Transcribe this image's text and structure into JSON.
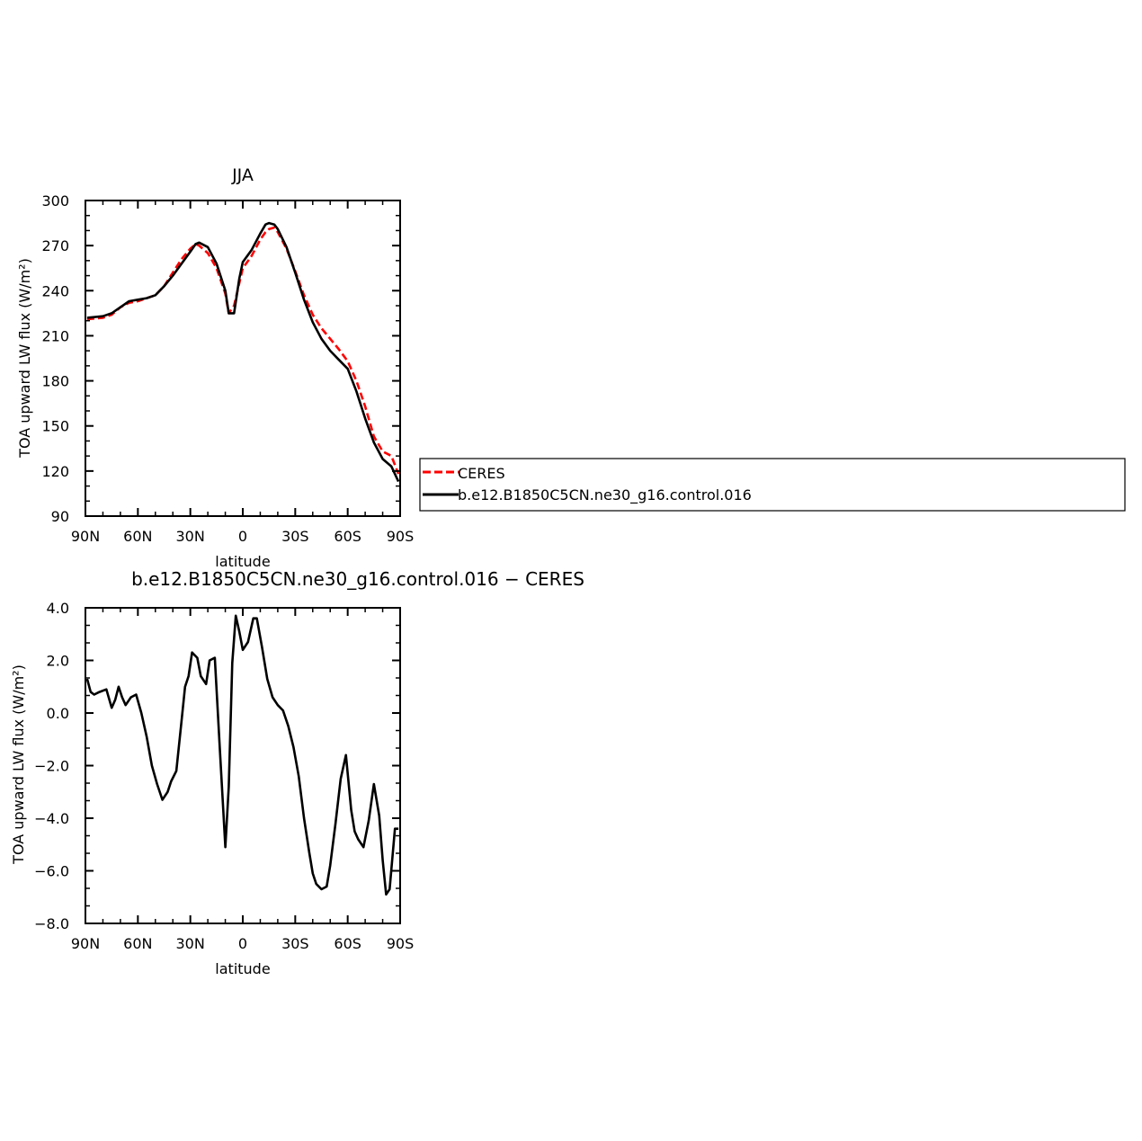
{
  "chart_data": [
    {
      "type": "line",
      "title": "JJA",
      "xlabel": "latitude",
      "ylabel": "TOA upward LW flux (W/m²)",
      "ylim": [
        90,
        300
      ],
      "xlim": [
        -90,
        90
      ],
      "x_tick_values": [
        -90,
        -60,
        -30,
        0,
        30,
        60,
        90
      ],
      "x_tick_labels": [
        "90N",
        "60N",
        "30N",
        "0",
        "30S",
        "60S",
        "90S"
      ],
      "y_tick_values": [
        90,
        120,
        150,
        180,
        210,
        240,
        270,
        300
      ],
      "y_tick_labels": [
        "90",
        "120",
        "150",
        "180",
        "210",
        "240",
        "270",
        "300"
      ],
      "legend_position": "right",
      "series": [
        {
          "name": "CERES",
          "color": "#ff0000",
          "dash": "dashed",
          "x": [
            -89,
            -80,
            -75,
            -70,
            -65,
            -60,
            -55,
            -50,
            -45,
            -40,
            -35,
            -30,
            -27,
            -25,
            -20,
            -15,
            -10,
            -8,
            -5,
            -2,
            0,
            5,
            10,
            13,
            15,
            18,
            20,
            25,
            30,
            35,
            40,
            45,
            50,
            55,
            60,
            65,
            70,
            75,
            80,
            85,
            89
          ],
          "y": [
            221,
            222,
            224,
            229,
            232,
            233,
            235,
            237,
            243,
            252,
            261,
            268,
            271,
            270,
            265,
            255,
            238,
            225,
            230,
            245,
            255,
            263,
            274,
            279,
            281,
            282,
            279,
            268,
            253,
            237,
            224,
            215,
            208,
            201,
            193,
            180,
            163,
            143,
            133,
            130,
            118
          ]
        },
        {
          "name": "b.e12.B1850C5CN.ne30_g16.control.016",
          "color": "#000000",
          "dash": "solid",
          "x": [
            -89,
            -80,
            -75,
            -70,
            -65,
            -60,
            -55,
            -50,
            -45,
            -40,
            -35,
            -30,
            -27,
            -25,
            -20,
            -15,
            -10,
            -8,
            -5,
            -2,
            0,
            5,
            10,
            13,
            15,
            18,
            20,
            25,
            30,
            35,
            40,
            45,
            50,
            55,
            60,
            65,
            70,
            75,
            80,
            85,
            89
          ],
          "y": [
            222,
            223,
            225,
            229,
            233,
            234,
            235,
            237,
            243,
            250,
            258,
            266,
            271,
            272,
            269,
            258,
            240,
            225,
            225,
            248,
            259,
            267,
            278,
            284,
            285,
            284,
            281,
            269,
            252,
            234,
            219,
            208,
            200,
            194,
            188,
            173,
            155,
            139,
            128,
            123,
            113
          ]
        }
      ]
    },
    {
      "type": "line",
      "title": "b.e12.B1850C5CN.ne30_g16.control.016 − CERES",
      "xlabel": "latitude",
      "ylabel": "TOA upward LW flux (W/m²)",
      "ylim": [
        -8.0,
        4.0
      ],
      "xlim": [
        -90,
        90
      ],
      "x_tick_values": [
        -90,
        -60,
        -30,
        0,
        30,
        60,
        90
      ],
      "x_tick_labels": [
        "90N",
        "60N",
        "30N",
        "0",
        "30S",
        "60S",
        "90S"
      ],
      "y_tick_values": [
        -8,
        -6,
        -4,
        -2,
        0,
        2,
        4
      ],
      "y_tick_labels": [
        "−8.0",
        "−6.0",
        "−4.0",
        "−2.0",
        "0.0",
        "2.0",
        "4.0"
      ],
      "series": [
        {
          "color": "#000000",
          "x": [
            -89,
            -87,
            -85,
            -82,
            -78,
            -75,
            -73,
            -71,
            -69,
            -67,
            -64,
            -61,
            -58,
            -55,
            -52,
            -49,
            -46,
            -43,
            -41,
            -38,
            -35,
            -33,
            -31,
            -29,
            -26,
            -24,
            -21,
            -19,
            -16,
            -13,
            -10,
            -8,
            -6,
            -4,
            -2,
            0,
            3,
            6,
            8,
            11,
            14,
            17,
            20,
            23,
            26,
            29,
            32,
            35,
            38,
            40,
            42,
            45,
            48,
            50,
            53,
            56,
            59,
            62,
            64,
            66,
            69,
            72,
            75,
            78,
            80,
            82,
            84,
            87,
            89
          ],
          "y": [
            1.3,
            0.8,
            0.7,
            0.8,
            0.9,
            0.2,
            0.5,
            1.0,
            0.6,
            0.3,
            0.6,
            0.7,
            0.0,
            -0.9,
            -2.0,
            -2.7,
            -3.3,
            -3.0,
            -2.6,
            -2.2,
            -0.3,
            1.0,
            1.4,
            2.3,
            2.1,
            1.4,
            1.1,
            2.0,
            2.1,
            -1.5,
            -5.1,
            -2.8,
            1.9,
            3.7,
            3.1,
            2.4,
            2.7,
            3.6,
            3.6,
            2.5,
            1.3,
            0.6,
            0.3,
            0.1,
            -0.5,
            -1.3,
            -2.4,
            -4.0,
            -5.3,
            -6.1,
            -6.5,
            -6.7,
            -6.6,
            -5.8,
            -4.2,
            -2.5,
            -1.6,
            -3.7,
            -4.5,
            -4.8,
            -5.1,
            -4.1,
            -2.7,
            -3.9,
            -5.6,
            -6.9,
            -6.7,
            -4.4,
            -4.4
          ]
        }
      ]
    }
  ]
}
